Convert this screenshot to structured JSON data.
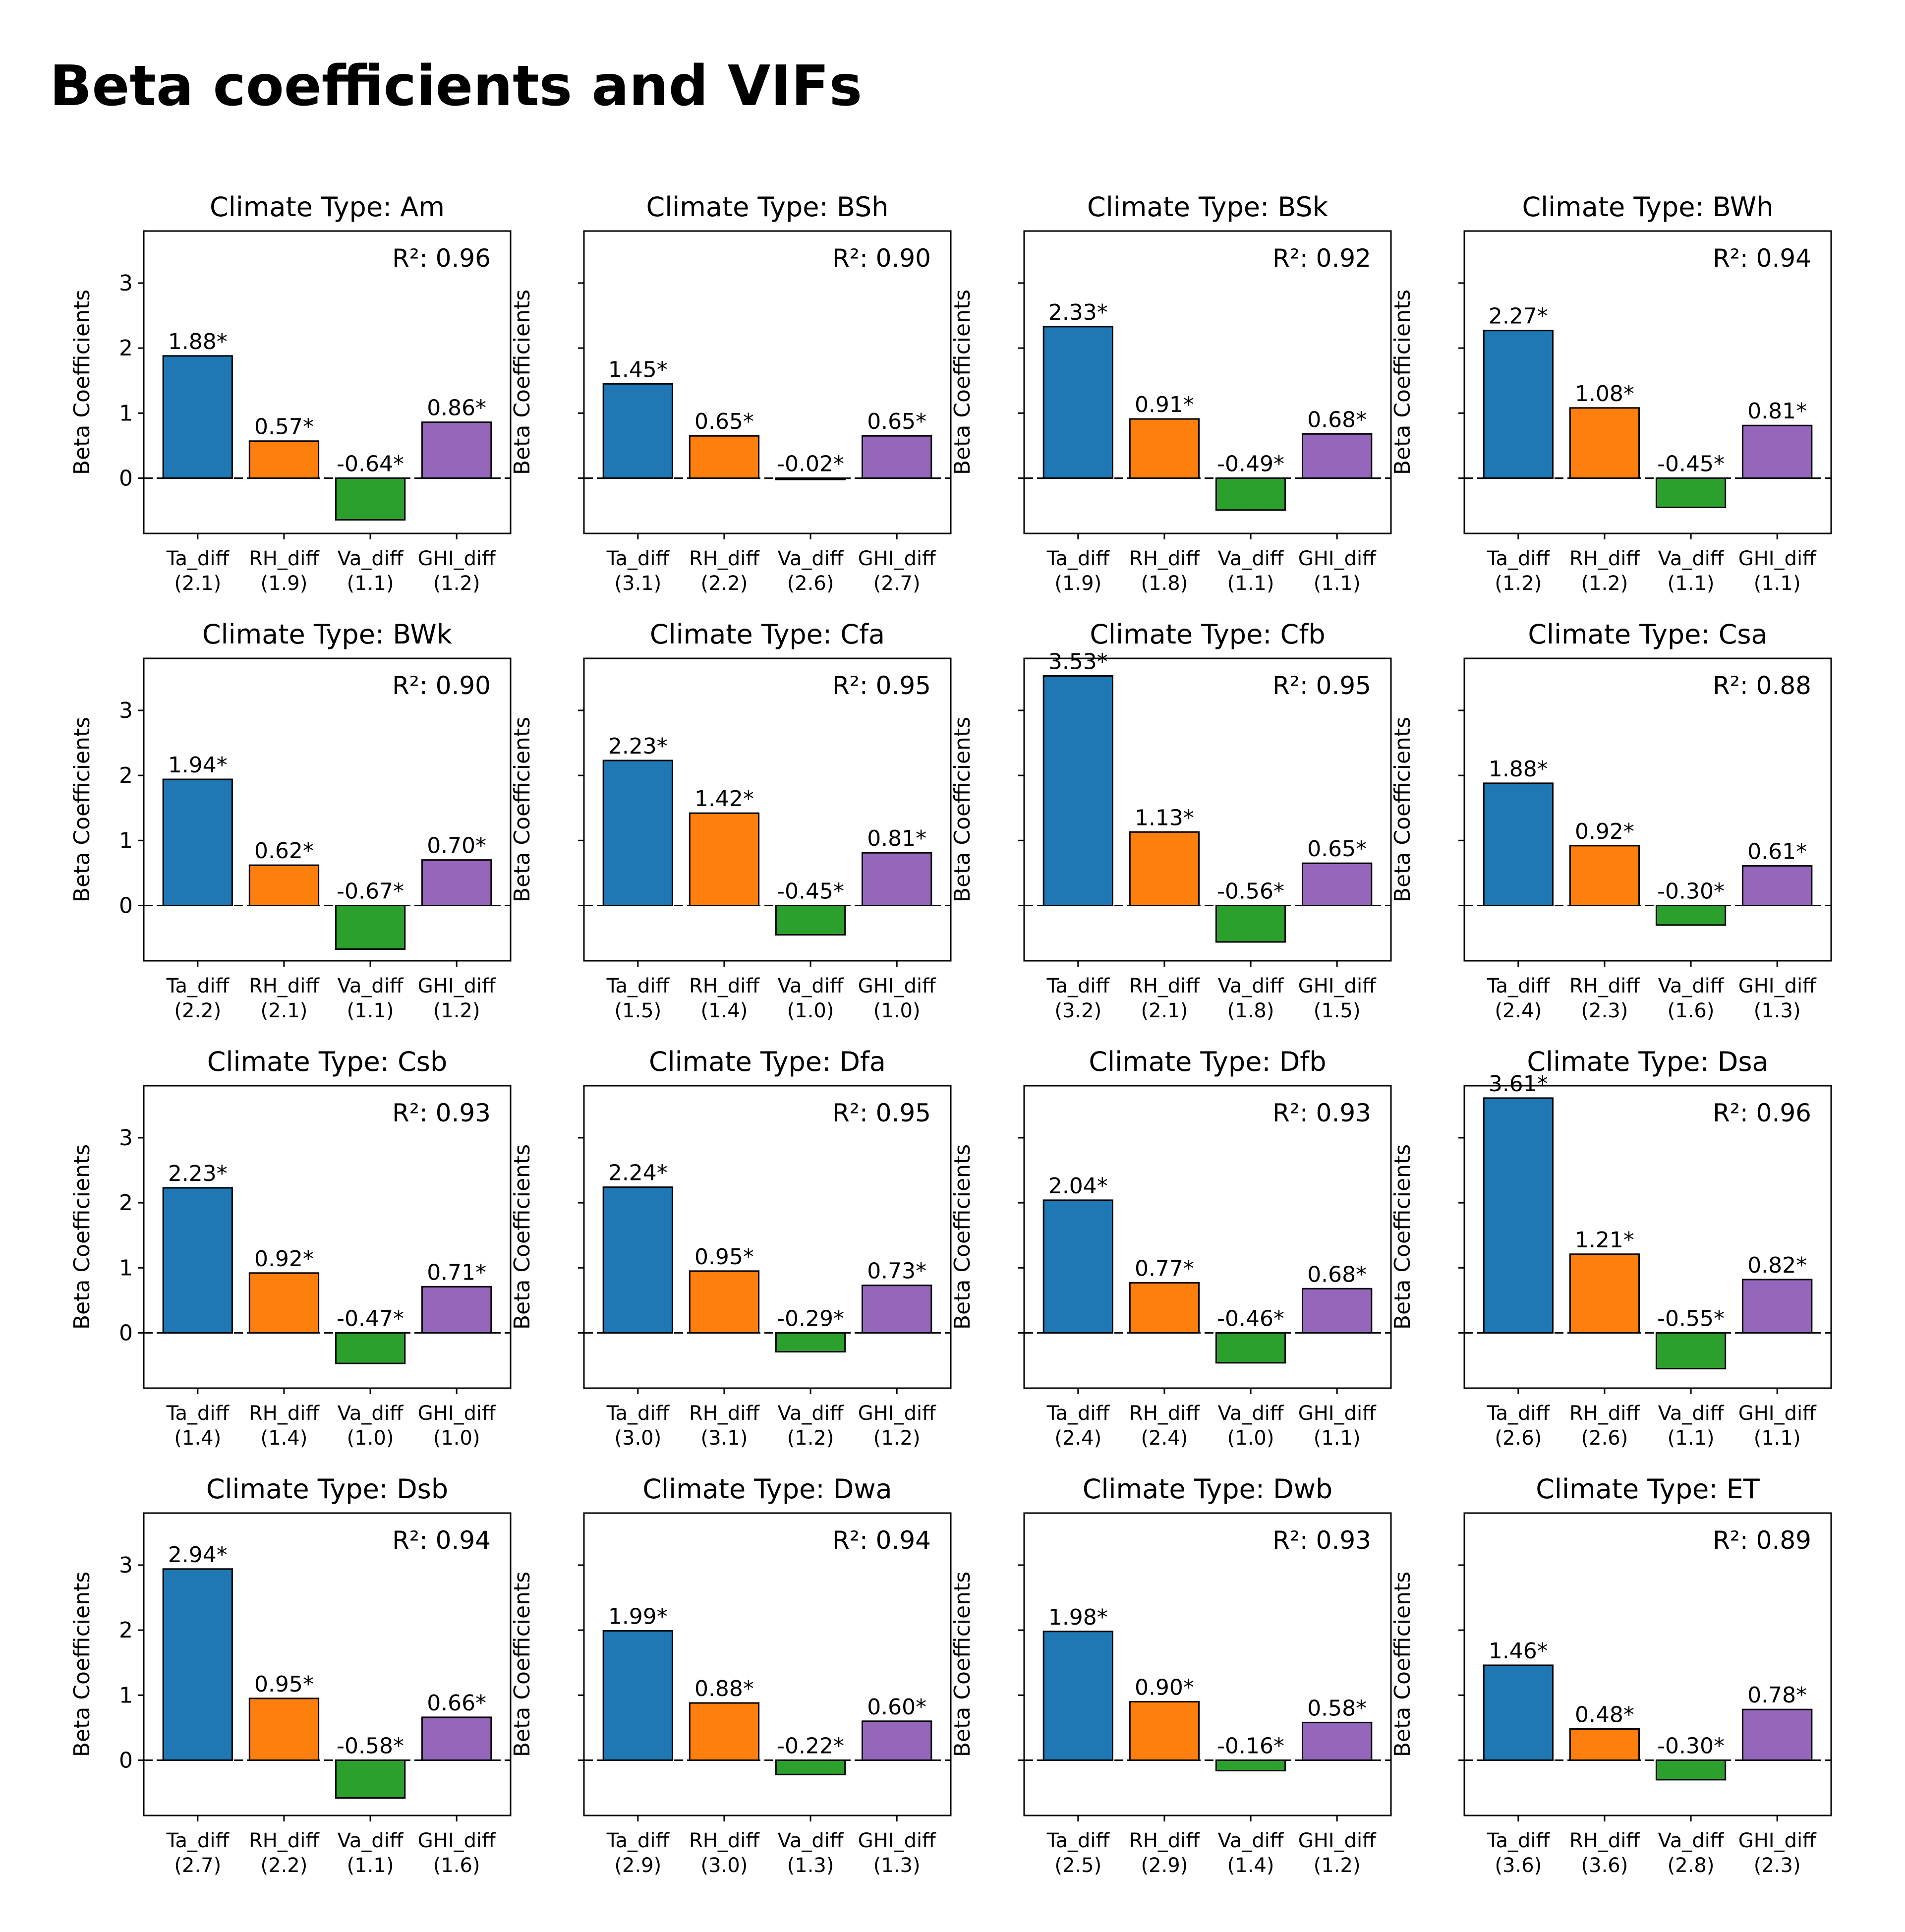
{
  "figure_title": "Beta coefficients and VIFs",
  "colors": [
    "#1f77b4",
    "#ff7f0e",
    "#2ca02c",
    "#9467bd"
  ],
  "chart_data": [
    {
      "type": "bar",
      "title": "Climate Type: Am",
      "ylabel": "Beta Coefficients",
      "ylim": [
        -0.85,
        3.8
      ],
      "yticks": [
        "0",
        "1",
        "2",
        "3"
      ],
      "categories": [
        "Ta_diff",
        "RH_diff",
        "Va_diff",
        "GHI_diff"
      ],
      "vif": [
        "(2.1)",
        "(1.9)",
        "(1.1)",
        "(1.2)"
      ],
      "values": [
        1.88,
        0.57,
        -0.64,
        0.86
      ],
      "value_labels": [
        "1.88*",
        "0.57*",
        "-0.64*",
        "0.86*"
      ],
      "r2_label": "R²: 0.96"
    },
    {
      "type": "bar",
      "title": "Climate Type: BSh",
      "ylabel": "Beta Coefficients",
      "ylim": [
        -0.85,
        3.8
      ],
      "yticks": [
        "0",
        "1",
        "2",
        "3"
      ],
      "categories": [
        "Ta_diff",
        "RH_diff",
        "Va_diff",
        "GHI_diff"
      ],
      "vif": [
        "(3.1)",
        "(2.2)",
        "(2.6)",
        "(2.7)"
      ],
      "values": [
        1.45,
        0.65,
        -0.02,
        0.65
      ],
      "value_labels": [
        "1.45*",
        "0.65*",
        "-0.02*",
        "0.65*"
      ],
      "r2_label": "R²: 0.90"
    },
    {
      "type": "bar",
      "title": "Climate Type: BSk",
      "ylabel": "Beta Coefficients",
      "ylim": [
        -0.85,
        3.8
      ],
      "yticks": [
        "0",
        "1",
        "2",
        "3"
      ],
      "categories": [
        "Ta_diff",
        "RH_diff",
        "Va_diff",
        "GHI_diff"
      ],
      "vif": [
        "(1.9)",
        "(1.8)",
        "(1.1)",
        "(1.1)"
      ],
      "values": [
        2.33,
        0.91,
        -0.49,
        0.68
      ],
      "value_labels": [
        "2.33*",
        "0.91*",
        "-0.49*",
        "0.68*"
      ],
      "r2_label": "R²: 0.92"
    },
    {
      "type": "bar",
      "title": "Climate Type: BWh",
      "ylabel": "Beta Coefficients",
      "ylim": [
        -0.85,
        3.8
      ],
      "yticks": [
        "0",
        "1",
        "2",
        "3"
      ],
      "categories": [
        "Ta_diff",
        "RH_diff",
        "Va_diff",
        "GHI_diff"
      ],
      "vif": [
        "(1.2)",
        "(1.2)",
        "(1.1)",
        "(1.1)"
      ],
      "values": [
        2.27,
        1.08,
        -0.45,
        0.81
      ],
      "value_labels": [
        "2.27*",
        "1.08*",
        "-0.45*",
        "0.81*"
      ],
      "r2_label": "R²: 0.94"
    },
    {
      "type": "bar",
      "title": "Climate Type: BWk",
      "ylabel": "Beta Coefficients",
      "ylim": [
        -0.85,
        3.8
      ],
      "yticks": [
        "0",
        "1",
        "2",
        "3"
      ],
      "categories": [
        "Ta_diff",
        "RH_diff",
        "Va_diff",
        "GHI_diff"
      ],
      "vif": [
        "(2.2)",
        "(2.1)",
        "(1.1)",
        "(1.2)"
      ],
      "values": [
        1.94,
        0.62,
        -0.67,
        0.7
      ],
      "value_labels": [
        "1.94*",
        "0.62*",
        "-0.67*",
        "0.70*"
      ],
      "r2_label": "R²: 0.90"
    },
    {
      "type": "bar",
      "title": "Climate Type: Cfa",
      "ylabel": "Beta Coefficients",
      "ylim": [
        -0.85,
        3.8
      ],
      "yticks": [
        "0",
        "1",
        "2",
        "3"
      ],
      "categories": [
        "Ta_diff",
        "RH_diff",
        "Va_diff",
        "GHI_diff"
      ],
      "vif": [
        "(1.5)",
        "(1.4)",
        "(1.0)",
        "(1.0)"
      ],
      "values": [
        2.23,
        1.42,
        -0.45,
        0.81
      ],
      "value_labels": [
        "2.23*",
        "1.42*",
        "-0.45*",
        "0.81*"
      ],
      "r2_label": "R²: 0.95"
    },
    {
      "type": "bar",
      "title": "Climate Type: Cfb",
      "ylabel": "Beta Coefficients",
      "ylim": [
        -0.85,
        3.8
      ],
      "yticks": [
        "0",
        "1",
        "2",
        "3"
      ],
      "categories": [
        "Ta_diff",
        "RH_diff",
        "Va_diff",
        "GHI_diff"
      ],
      "vif": [
        "(3.2)",
        "(2.1)",
        "(1.8)",
        "(1.5)"
      ],
      "values": [
        3.53,
        1.13,
        -0.56,
        0.65
      ],
      "value_labels": [
        "3.53*",
        "1.13*",
        "-0.56*",
        "0.65*"
      ],
      "r2_label": "R²: 0.95"
    },
    {
      "type": "bar",
      "title": "Climate Type: Csa",
      "ylabel": "Beta Coefficients",
      "ylim": [
        -0.85,
        3.8
      ],
      "yticks": [
        "0",
        "1",
        "2",
        "3"
      ],
      "categories": [
        "Ta_diff",
        "RH_diff",
        "Va_diff",
        "GHI_diff"
      ],
      "vif": [
        "(2.4)",
        "(2.3)",
        "(1.6)",
        "(1.3)"
      ],
      "values": [
        1.88,
        0.92,
        -0.3,
        0.61
      ],
      "value_labels": [
        "1.88*",
        "0.92*",
        "-0.30*",
        "0.61*"
      ],
      "r2_label": "R²: 0.88"
    },
    {
      "type": "bar",
      "title": "Climate Type: Csb",
      "ylabel": "Beta Coefficients",
      "ylim": [
        -0.85,
        3.8
      ],
      "yticks": [
        "0",
        "1",
        "2",
        "3"
      ],
      "categories": [
        "Ta_diff",
        "RH_diff",
        "Va_diff",
        "GHI_diff"
      ],
      "vif": [
        "(1.4)",
        "(1.4)",
        "(1.0)",
        "(1.0)"
      ],
      "values": [
        2.23,
        0.92,
        -0.47,
        0.71
      ],
      "value_labels": [
        "2.23*",
        "0.92*",
        "-0.47*",
        "0.71*"
      ],
      "r2_label": "R²: 0.93"
    },
    {
      "type": "bar",
      "title": "Climate Type: Dfa",
      "ylabel": "Beta Coefficients",
      "ylim": [
        -0.85,
        3.8
      ],
      "yticks": [
        "0",
        "1",
        "2",
        "3"
      ],
      "categories": [
        "Ta_diff",
        "RH_diff",
        "Va_diff",
        "GHI_diff"
      ],
      "vif": [
        "(3.0)",
        "(3.1)",
        "(1.2)",
        "(1.2)"
      ],
      "values": [
        2.24,
        0.95,
        -0.29,
        0.73
      ],
      "value_labels": [
        "2.24*",
        "0.95*",
        "-0.29*",
        "0.73*"
      ],
      "r2_label": "R²: 0.95"
    },
    {
      "type": "bar",
      "title": "Climate Type: Dfb",
      "ylabel": "Beta Coefficients",
      "ylim": [
        -0.85,
        3.8
      ],
      "yticks": [
        "0",
        "1",
        "2",
        "3"
      ],
      "categories": [
        "Ta_diff",
        "RH_diff",
        "Va_diff",
        "GHI_diff"
      ],
      "vif": [
        "(2.4)",
        "(2.4)",
        "(1.0)",
        "(1.1)"
      ],
      "values": [
        2.04,
        0.77,
        -0.46,
        0.68
      ],
      "value_labels": [
        "2.04*",
        "0.77*",
        "-0.46*",
        "0.68*"
      ],
      "r2_label": "R²: 0.93"
    },
    {
      "type": "bar",
      "title": "Climate Type: Dsa",
      "ylabel": "Beta Coefficients",
      "ylim": [
        -0.85,
        3.8
      ],
      "yticks": [
        "0",
        "1",
        "2",
        "3"
      ],
      "categories": [
        "Ta_diff",
        "RH_diff",
        "Va_diff",
        "GHI_diff"
      ],
      "vif": [
        "(2.6)",
        "(2.6)",
        "(1.1)",
        "(1.1)"
      ],
      "values": [
        3.61,
        1.21,
        -0.55,
        0.82
      ],
      "value_labels": [
        "3.61*",
        "1.21*",
        "-0.55*",
        "0.82*"
      ],
      "r2_label": "R²: 0.96"
    },
    {
      "type": "bar",
      "title": "Climate Type: Dsb",
      "ylabel": "Beta Coefficients",
      "ylim": [
        -0.85,
        3.8
      ],
      "yticks": [
        "0",
        "1",
        "2",
        "3"
      ],
      "categories": [
        "Ta_diff",
        "RH_diff",
        "Va_diff",
        "GHI_diff"
      ],
      "vif": [
        "(2.7)",
        "(2.2)",
        "(1.1)",
        "(1.6)"
      ],
      "values": [
        2.94,
        0.95,
        -0.58,
        0.66
      ],
      "value_labels": [
        "2.94*",
        "0.95*",
        "-0.58*",
        "0.66*"
      ],
      "r2_label": "R²: 0.94"
    },
    {
      "type": "bar",
      "title": "Climate Type: Dwa",
      "ylabel": "Beta Coefficients",
      "ylim": [
        -0.85,
        3.8
      ],
      "yticks": [
        "0",
        "1",
        "2",
        "3"
      ],
      "categories": [
        "Ta_diff",
        "RH_diff",
        "Va_diff",
        "GHI_diff"
      ],
      "vif": [
        "(2.9)",
        "(3.0)",
        "(1.3)",
        "(1.3)"
      ],
      "values": [
        1.99,
        0.88,
        -0.22,
        0.6
      ],
      "value_labels": [
        "1.99*",
        "0.88*",
        "-0.22*",
        "0.60*"
      ],
      "r2_label": "R²: 0.94"
    },
    {
      "type": "bar",
      "title": "Climate Type: Dwb",
      "ylabel": "Beta Coefficients",
      "ylim": [
        -0.85,
        3.8
      ],
      "yticks": [
        "0",
        "1",
        "2",
        "3"
      ],
      "categories": [
        "Ta_diff",
        "RH_diff",
        "Va_diff",
        "GHI_diff"
      ],
      "vif": [
        "(2.5)",
        "(2.9)",
        "(1.4)",
        "(1.2)"
      ],
      "values": [
        1.98,
        0.9,
        -0.16,
        0.58
      ],
      "value_labels": [
        "1.98*",
        "0.90*",
        "-0.16*",
        "0.58*"
      ],
      "r2_label": "R²: 0.93"
    },
    {
      "type": "bar",
      "title": "Climate Type: ET",
      "ylabel": "Beta Coefficients",
      "ylim": [
        -0.85,
        3.8
      ],
      "yticks": [
        "0",
        "1",
        "2",
        "3"
      ],
      "categories": [
        "Ta_diff",
        "RH_diff",
        "Va_diff",
        "GHI_diff"
      ],
      "vif": [
        "(3.6)",
        "(3.6)",
        "(2.8)",
        "(2.3)"
      ],
      "values": [
        1.46,
        0.48,
        -0.3,
        0.78
      ],
      "value_labels": [
        "1.46*",
        "0.48*",
        "-0.30*",
        "0.78*"
      ],
      "r2_label": "R²: 0.89"
    }
  ]
}
